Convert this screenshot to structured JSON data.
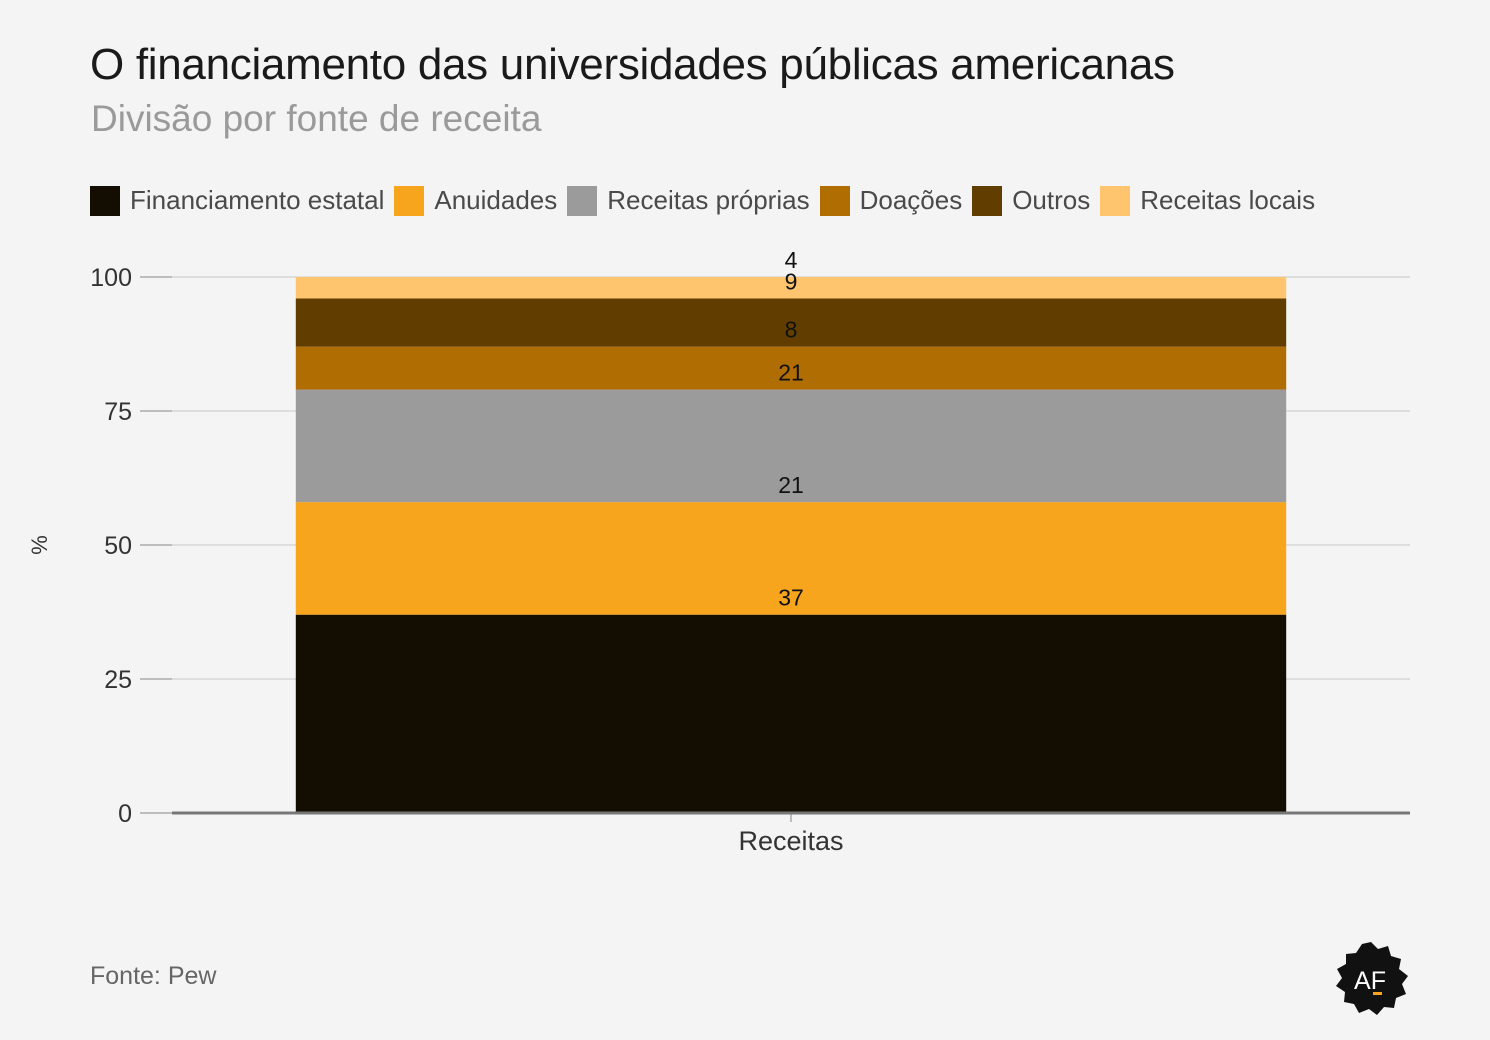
{
  "title": "O financiamento das universidades públicas americanas",
  "subtitle": "Divisão por fonte de receita",
  "source": "Fonte: Pew",
  "logo_text": "AF",
  "chart_data": {
    "type": "bar",
    "stacked": true,
    "categories": [
      "Receitas"
    ],
    "ylabel": "%",
    "ylim": [
      0,
      100
    ],
    "yticks": [
      0,
      25,
      50,
      75,
      100
    ],
    "grid": true,
    "legend_position": "top-left",
    "series": [
      {
        "name": "Financiamento estatal",
        "values": [
          37
        ],
        "color": "#140d01"
      },
      {
        "name": "Anuidades",
        "values": [
          21
        ],
        "color": "#f8a51e"
      },
      {
        "name": "Receitas próprias",
        "values": [
          21
        ],
        "color": "#9b9b9b"
      },
      {
        "name": "Doações",
        "values": [
          8
        ],
        "color": "#b06e02"
      },
      {
        "name": "Outros",
        "values": [
          9
        ],
        "color": "#623d00"
      },
      {
        "name": "Receitas locais",
        "values": [
          4
        ],
        "color": "#fec56e"
      }
    ]
  }
}
